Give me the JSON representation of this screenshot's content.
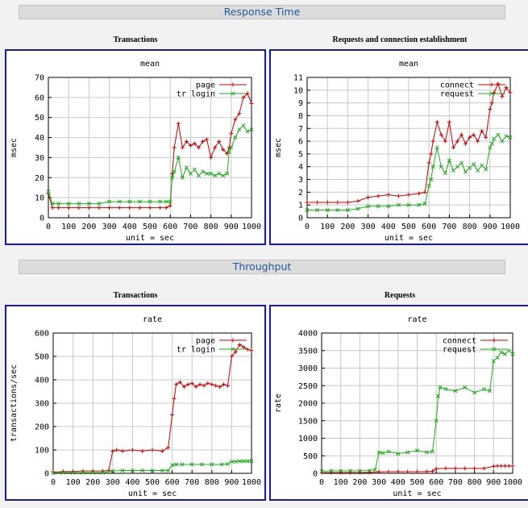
{
  "sections": {
    "response": "Response Time",
    "throughput": "Throughput"
  },
  "panel_titles": {
    "c1": "Transactions",
    "c2": "Requests and connection establishment",
    "c3": "Transactions",
    "c4": "Requests"
  },
  "colors": {
    "series1": "#cc0000",
    "series2": "#22aa22",
    "frame": "#1a1aa6",
    "grid": "#c8c8c8"
  },
  "chart_data": [
    {
      "type": "line",
      "title": "mean",
      "xlabel": "unit = sec",
      "ylabel": "msec",
      "xlim": [
        0,
        1000
      ],
      "ylim": [
        0,
        70
      ],
      "xticks": [
        "0",
        "100",
        "200",
        "300",
        "400",
        "500",
        "600",
        "700",
        "800",
        "900",
        "1000"
      ],
      "yticks": [
        "0",
        "10",
        "20",
        "30",
        "40",
        "50",
        "60",
        "70"
      ],
      "legend_position": "top-right",
      "series": [
        {
          "name": "page",
          "x": [
            0,
            20,
            50,
            100,
            150,
            200,
            250,
            300,
            350,
            400,
            450,
            500,
            550,
            580,
            600,
            610,
            620,
            640,
            660,
            680,
            700,
            720,
            740,
            760,
            780,
            800,
            820,
            840,
            860,
            880,
            890,
            900,
            920,
            940,
            960,
            980,
            1000
          ],
          "y": [
            12,
            5,
            5,
            5,
            5,
            5,
            5,
            5,
            5,
            5,
            5,
            5,
            5,
            5,
            6,
            22,
            35,
            47,
            35,
            38,
            36,
            37,
            35,
            38,
            39,
            30,
            35,
            38,
            34,
            32,
            35,
            42,
            49,
            52,
            60,
            62,
            57
          ]
        },
        {
          "name": "tr login",
          "x": [
            0,
            20,
            50,
            100,
            150,
            200,
            250,
            300,
            350,
            400,
            450,
            500,
            550,
            580,
            600,
            610,
            620,
            640,
            660,
            680,
            700,
            720,
            740,
            760,
            780,
            800,
            820,
            840,
            860,
            880,
            890,
            900,
            920,
            940,
            960,
            980,
            1000
          ],
          "y": [
            13,
            7,
            7,
            7,
            7,
            7,
            7,
            8,
            8,
            8,
            8,
            8,
            8,
            8,
            8,
            20,
            23,
            30,
            20,
            25,
            22,
            24,
            21,
            23,
            22,
            22,
            21,
            22,
            21,
            22,
            33,
            35,
            40,
            44,
            46,
            43,
            44
          ]
        }
      ]
    },
    {
      "type": "line",
      "title": "mean",
      "xlabel": "unit = sec",
      "ylabel": "msec",
      "xlim": [
        0,
        1000
      ],
      "ylim": [
        0,
        11
      ],
      "xticks": [
        "0",
        "100",
        "200",
        "300",
        "400",
        "500",
        "600",
        "700",
        "800",
        "900",
        "1000"
      ],
      "yticks": [
        "0",
        "1",
        "2",
        "3",
        "4",
        "5",
        "6",
        "7",
        "8",
        "9",
        "10",
        "11"
      ],
      "legend_position": "top-right",
      "series": [
        {
          "name": "connect",
          "x": [
            0,
            50,
            100,
            150,
            200,
            250,
            300,
            350,
            400,
            450,
            500,
            550,
            580,
            600,
            610,
            620,
            640,
            660,
            680,
            700,
            720,
            740,
            760,
            780,
            800,
            820,
            840,
            860,
            880,
            900,
            910,
            920,
            940,
            960,
            980,
            1000
          ],
          "y": [
            1.2,
            1.2,
            1.2,
            1.2,
            1.2,
            1.3,
            1.6,
            1.7,
            1.8,
            1.7,
            1.8,
            1.9,
            2.0,
            4.3,
            5.0,
            6.0,
            7.5,
            6.5,
            6.0,
            7.5,
            5.5,
            6.0,
            6.5,
            5.8,
            6.3,
            6.5,
            6.0,
            6.8,
            6.3,
            8.5,
            9.0,
            9.8,
            10.5,
            9.5,
            10.2,
            9.8
          ]
        },
        {
          "name": "request",
          "x": [
            0,
            50,
            100,
            150,
            200,
            250,
            300,
            350,
            400,
            450,
            500,
            550,
            580,
            600,
            610,
            620,
            640,
            660,
            680,
            700,
            720,
            740,
            760,
            780,
            800,
            820,
            840,
            860,
            880,
            900,
            910,
            920,
            940,
            960,
            980,
            1000
          ],
          "y": [
            0.6,
            0.6,
            0.6,
            0.6,
            0.6,
            0.7,
            0.9,
            0.9,
            0.9,
            1.0,
            1.0,
            1.0,
            1.1,
            2.5,
            3.0,
            4.0,
            5.5,
            4.0,
            3.5,
            4.5,
            3.7,
            4.0,
            4.3,
            3.6,
            3.9,
            4.2,
            3.7,
            4.1,
            3.8,
            5.5,
            5.8,
            6.2,
            6.5,
            6.0,
            6.4,
            6.3
          ]
        }
      ]
    },
    {
      "type": "line",
      "title": "rate",
      "xlabel": "unit = sec",
      "ylabel": "transactions/sec",
      "xlim": [
        0,
        1000
      ],
      "ylim": [
        0,
        600
      ],
      "xticks": [
        "0",
        "100",
        "200",
        "300",
        "400",
        "500",
        "600",
        "700",
        "800",
        "900",
        "1000"
      ],
      "yticks": [
        "0",
        "100",
        "200",
        "300",
        "400",
        "500",
        "600"
      ],
      "legend_position": "top-right",
      "series": [
        {
          "name": "page",
          "x": [
            0,
            50,
            100,
            150,
            200,
            250,
            280,
            300,
            320,
            350,
            400,
            450,
            500,
            550,
            580,
            600,
            610,
            620,
            640,
            660,
            680,
            700,
            720,
            740,
            760,
            780,
            800,
            820,
            840,
            860,
            880,
            900,
            920,
            940,
            960,
            980,
            1000
          ],
          "y": [
            5,
            8,
            8,
            10,
            10,
            10,
            12,
            95,
            100,
            95,
            100,
            95,
            100,
            95,
            110,
            250,
            320,
            380,
            390,
            370,
            380,
            385,
            370,
            380,
            375,
            385,
            380,
            375,
            370,
            380,
            375,
            500,
            520,
            550,
            540,
            530,
            525
          ]
        },
        {
          "name": "tr login",
          "x": [
            0,
            50,
            100,
            150,
            200,
            250,
            300,
            350,
            400,
            450,
            500,
            550,
            580,
            600,
            620,
            650,
            700,
            750,
            800,
            850,
            880,
            900,
            920,
            940,
            960,
            980,
            1000
          ],
          "y": [
            2,
            3,
            3,
            3,
            3,
            3,
            10,
            12,
            12,
            12,
            12,
            12,
            12,
            35,
            38,
            38,
            38,
            38,
            38,
            38,
            40,
            50,
            50,
            52,
            52,
            52,
            52
          ]
        }
      ]
    },
    {
      "type": "line",
      "title": "rate",
      "xlabel": "unit = sec",
      "ylabel": "rate",
      "xlim": [
        0,
        1000
      ],
      "ylim": [
        0,
        4000
      ],
      "xticks": [
        "0",
        "100",
        "200",
        "300",
        "400",
        "500",
        "600",
        "700",
        "800",
        "900",
        "1000"
      ],
      "yticks": [
        "0",
        "500",
        "1000",
        "1500",
        "2000",
        "2500",
        "3000",
        "3500",
        "4000"
      ],
      "legend_position": "top-right",
      "series": [
        {
          "name": "connect",
          "x": [
            0,
            50,
            100,
            150,
            200,
            250,
            300,
            350,
            400,
            450,
            500,
            550,
            580,
            600,
            650,
            700,
            750,
            800,
            850,
            900,
            920,
            940,
            960,
            980,
            1000
          ],
          "y": [
            20,
            20,
            20,
            20,
            20,
            25,
            40,
            45,
            45,
            45,
            45,
            50,
            60,
            130,
            140,
            140,
            140,
            140,
            140,
            200,
            210,
            210,
            210,
            210,
            210
          ]
        },
        {
          "name": "request",
          "x": [
            0,
            50,
            100,
            150,
            200,
            250,
            280,
            300,
            320,
            350,
            400,
            450,
            500,
            550,
            580,
            600,
            610,
            620,
            650,
            700,
            750,
            800,
            850,
            880,
            900,
            920,
            940,
            960,
            980,
            1000
          ],
          "y": [
            60,
            70,
            70,
            70,
            70,
            80,
            100,
            600,
            580,
            620,
            560,
            600,
            650,
            600,
            620,
            1500,
            2200,
            2450,
            2400,
            2350,
            2450,
            2300,
            2400,
            2350,
            3200,
            3300,
            3450,
            3400,
            3500,
            3400
          ]
        }
      ]
    }
  ]
}
